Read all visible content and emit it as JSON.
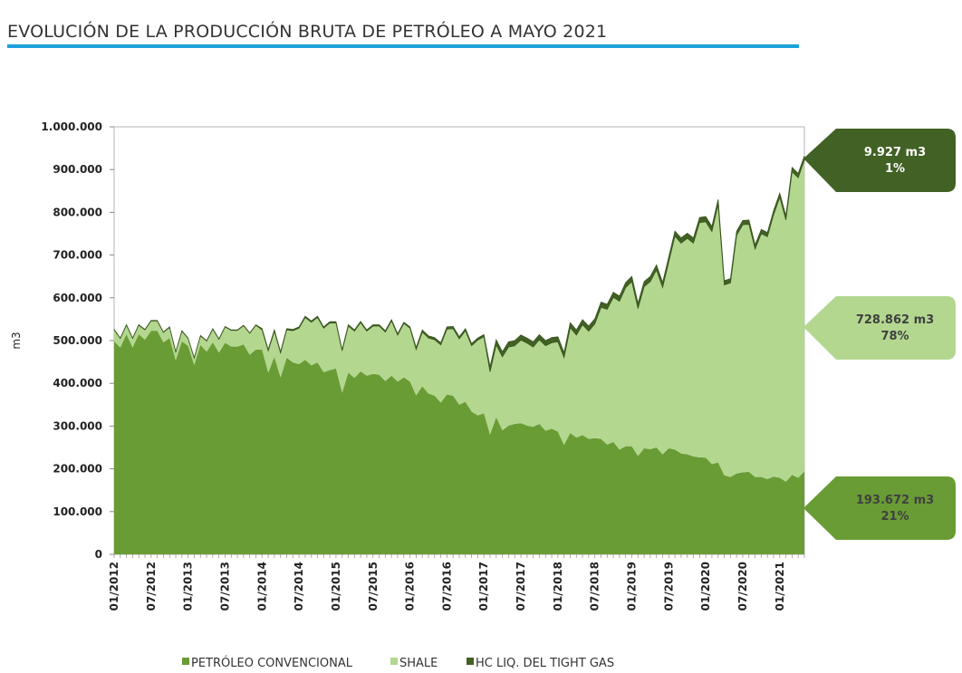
{
  "title": "EVOLUCIÓN DE LA PRODUCCIÓN BRUTA DE PETRÓLEO A MAYO 2021",
  "colors": {
    "convencional": "#6a9c35",
    "shale": "#b3d78f",
    "tight": "#426124",
    "title_rule": "#1da1dc"
  },
  "chart_data": {
    "type": "area",
    "stacked": true,
    "title": "EVOLUCIÓN DE LA PRODUCCIÓN BRUTA DE PETRÓLEO A MAYO 2021",
    "xlabel": "",
    "ylabel": "m3",
    "ylim": [
      0,
      1000000
    ],
    "units_note": "series values in thousands of m3",
    "y_ticks": [
      "0",
      "100.000",
      "200.000",
      "300.000",
      "400.000",
      "500.000",
      "600.000",
      "700.000",
      "800.000",
      "900.000",
      "1.000.000"
    ],
    "x_start": "01/2012",
    "x_end": "05/2021",
    "x_ticks": [
      "01/2012",
      "07/2012",
      "01/2013",
      "07/2013",
      "01/2014",
      "07/2014",
      "01/2015",
      "07/2015",
      "01/2016",
      "07/2016",
      "01/2017",
      "07/2017",
      "01/2018",
      "07/2018",
      "01/2019",
      "07/2019",
      "01/2020",
      "07/2020",
      "01/2021"
    ],
    "legend_position": "bottom",
    "series": [
      {
        "name": "PETRÓLEO CONVENCIONAL",
        "values": [
          498,
          484,
          515,
          484,
          515,
          502,
          523,
          523,
          496,
          506,
          454,
          498,
          488,
          443,
          490,
          474,
          496,
          472,
          495,
          486,
          486,
          491,
          467,
          479,
          479,
          425,
          462,
          414,
          460,
          449,
          445,
          455,
          442,
          449,
          426,
          431,
          435,
          378,
          425,
          413,
          428,
          418,
          422,
          420,
          405,
          418,
          404,
          414,
          404,
          372,
          393,
          376,
          371,
          355,
          374,
          371,
          350,
          357,
          334,
          325,
          330,
          280,
          321,
          290,
          301,
          305,
          307,
          301,
          298,
          305,
          289,
          294,
          287,
          256,
          284,
          273,
          279,
          270,
          272,
          270,
          257,
          263,
          245,
          253,
          253,
          230,
          248,
          246,
          250,
          234,
          248,
          245,
          236,
          234,
          229,
          227,
          226,
          211,
          215,
          185,
          181,
          189,
          192,
          193,
          181,
          181,
          176,
          182,
          179,
          170,
          186,
          179,
          194
        ]
      },
      {
        "name": "SHALE",
        "values": [
          27,
          21,
          21,
          21,
          21,
          23,
          23,
          23,
          23,
          25,
          19,
          24,
          17,
          16,
          21,
          25,
          31,
          31,
          37,
          38,
          38,
          44,
          50,
          57,
          46,
          51,
          60,
          57,
          65,
          74,
          84,
          99,
          101,
          105,
          103,
          110,
          106,
          98,
          109,
          109,
          114,
          104,
          112,
          114,
          115,
          128,
          109,
          126,
          125,
          107,
          127,
          130,
          131,
          135,
          153,
          157,
          154,
          166,
          154,
          176,
          179,
          147,
          169,
          172,
          184,
          183,
          194,
          193,
          187,
          197,
          199,
          201,
          210,
          204,
          246,
          240,
          258,
          252,
          267,
          308,
          316,
          338,
          347,
          371,
          385,
          345,
          378,
          392,
          415,
          390,
          436,
          499,
          492,
          505,
          499,
          549,
          552,
          544,
          603,
          445,
          454,
          557,
          579,
          579,
          533,
          569,
          567,
          612,
          656,
          612,
          709,
          702,
          728
        ]
      },
      {
        "name": "HC LIQ. DEL TIGHT GAS",
        "values": [
          1,
          1,
          1,
          1,
          1,
          1,
          1,
          1,
          1,
          1,
          1,
          1,
          1,
          1,
          1,
          1,
          1,
          1,
          1,
          1,
          1,
          1,
          1,
          1,
          3,
          3,
          3,
          3,
          3,
          3,
          3,
          3,
          3,
          3,
          3,
          3,
          3,
          3,
          3,
          3,
          3,
          3,
          3,
          3,
          3,
          3,
          3,
          3,
          3,
          5,
          5,
          5,
          5,
          5,
          5,
          5,
          5,
          5,
          5,
          5,
          5,
          12,
          12,
          12,
          12,
          12,
          12,
          12,
          12,
          12,
          12,
          12,
          12,
          12,
          12,
          12,
          12,
          12,
          12,
          12,
          12,
          12,
          12,
          12,
          12,
          12,
          12,
          12,
          12,
          12,
          12,
          12,
          12,
          12,
          12,
          12,
          12,
          12,
          12,
          10,
          10,
          10,
          10,
          10,
          10,
          10,
          10,
          10,
          10,
          10,
          10,
          10,
          10
        ]
      }
    ],
    "annotations": [
      {
        "series": "HC LIQ. DEL TIGHT GAS",
        "value": "9.927 m3",
        "share": "1%"
      },
      {
        "series": "SHALE",
        "value": "728.862 m3",
        "share": "78%"
      },
      {
        "series": "PETRÓLEO CONVENCIONAL",
        "value": "193.672 m3",
        "share": "21%"
      }
    ]
  }
}
